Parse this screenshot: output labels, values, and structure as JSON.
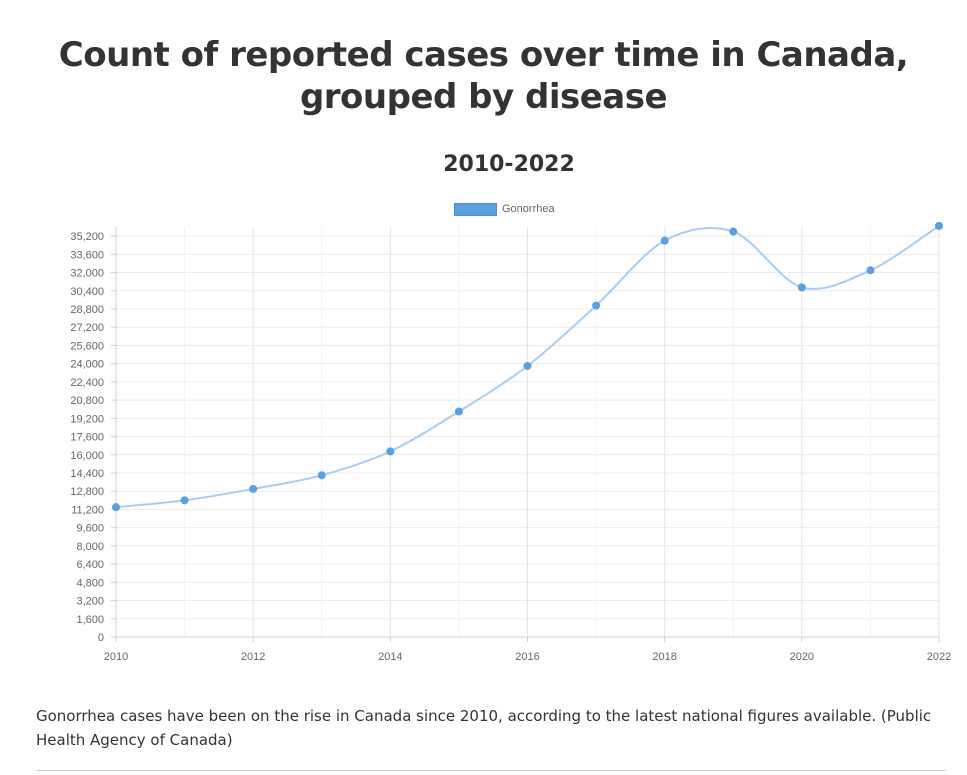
{
  "chart_data": {
    "type": "line",
    "title": [
      "Count of reported cases over time in Canada,",
      "grouped by disease"
    ],
    "subtitle": "2010-2022",
    "legend_position": "top",
    "series": [
      {
        "name": "Gonorrhea",
        "color": "#5aa0e0",
        "line_color": "#a9cdf0",
        "x": [
          2010,
          2011,
          2012,
          2013,
          2014,
          2015,
          2016,
          2017,
          2018,
          2019,
          2020,
          2021,
          2022
        ],
        "values": [
          11400,
          12000,
          13000,
          14200,
          16300,
          19800,
          23800,
          29100,
          34800,
          35600,
          30700,
          32200,
          36100
        ]
      }
    ],
    "xlim": [
      2010,
      2022
    ],
    "x_tick_labels": [
      "2010",
      "2012",
      "2014",
      "2016",
      "2018",
      "2020",
      "2022"
    ],
    "ylim": [
      0,
      36000
    ],
    "y_tick_labels": [
      "0",
      "1,600",
      "3,200",
      "4,800",
      "6,400",
      "8,000",
      "9,600",
      "11,200",
      "12,800",
      "14,400",
      "16,000",
      "17,600",
      "19,200",
      "20,800",
      "22,400",
      "24,000",
      "25,600",
      "27,200",
      "28,800",
      "30,400",
      "32,000",
      "33,600",
      "35,200"
    ],
    "grid": true
  },
  "caption": "Gonorrhea cases have been on the rise in Canada since 2010, according to the latest national figures available. (Public Health Agency of Canada)"
}
